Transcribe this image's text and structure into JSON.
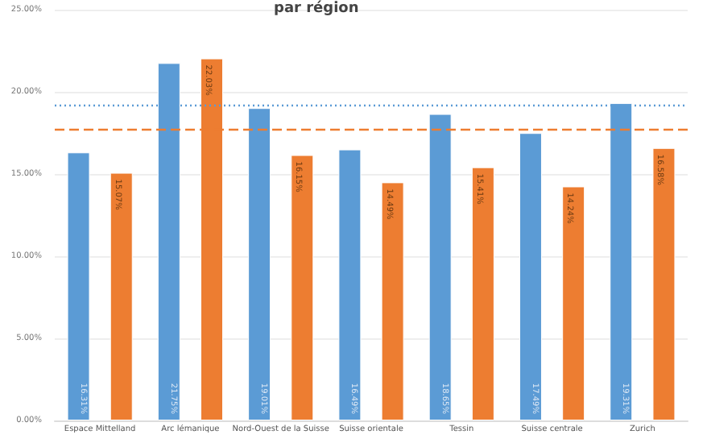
{
  "chart_data": {
    "type": "bar",
    "title": "par région",
    "categories": [
      "Espace Mittelland",
      "Arc lémanique",
      "Nord-Ouest de la Suisse",
      "Suisse orientale",
      "Tessin",
      "Suisse centrale",
      "Zurich"
    ],
    "series": [
      {
        "color": "#5b9bd5",
        "values": [
          16.31,
          21.75,
          19.01,
          16.49,
          18.65,
          17.49,
          19.31
        ],
        "value_labels": [
          "16.31%",
          "21.75%",
          "19.01%",
          "16.49%",
          "18.65%",
          "17.49%",
          "19.31%"
        ]
      },
      {
        "color": "#ed7d31",
        "values": [
          15.07,
          22.03,
          16.15,
          14.49,
          15.41,
          14.24,
          16.58
        ],
        "value_labels": [
          "15.07%",
          "22.03%",
          "16.15%",
          "14.49%",
          "15.41%",
          "14.24%",
          "16.58%"
        ]
      }
    ],
    "ylim": [
      0,
      25
    ],
    "yticks": [
      {
        "value": 0,
        "label": "0.00%"
      },
      {
        "value": 5,
        "label": "5.00%"
      },
      {
        "value": 10,
        "label": "10.00%"
      },
      {
        "value": 15,
        "label": "15.00%"
      },
      {
        "value": 20,
        "label": "20.00%"
      },
      {
        "value": 25,
        "label": "25.00%"
      }
    ],
    "ref_lines": [
      {
        "axis": "y",
        "value": 19.2,
        "color": "#5b9bd5",
        "line_style": "dotted"
      },
      {
        "axis": "y",
        "value": 17.7,
        "color": "#ed7d31",
        "line_style": "dashed"
      }
    ],
    "grid": "y"
  }
}
